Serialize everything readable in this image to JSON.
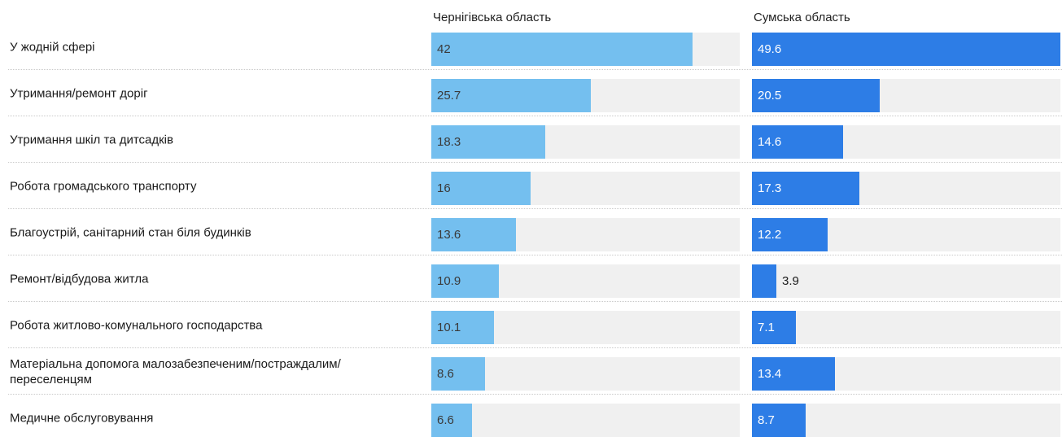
{
  "chart_data": {
    "type": "bar",
    "orientation": "horizontal",
    "categories": [
      "У жодній сфері",
      "Утримання/ремонт доріг",
      "Утримання шкіл та дитсадків",
      "Робота громадського транспорту",
      "Благоустрій, санітарний стан біля будинків",
      "Ремонт/відбудова житла",
      "Робота житлово-комунального господарства",
      "Матеріальна допомога малозабезпеченим/постраждалим/ переселенцям",
      "Медичне обслуговування"
    ],
    "series": [
      {
        "name": "Чернігівська область",
        "color": "#74bfef",
        "values": [
          42,
          25.7,
          18.3,
          16,
          13.6,
          10.9,
          10.1,
          8.6,
          6.6
        ]
      },
      {
        "name": "Сумська область",
        "color": "#2d7de6",
        "values": [
          49.6,
          20.5,
          14.6,
          17.3,
          12.2,
          3.9,
          7.1,
          13.4,
          8.7
        ]
      }
    ],
    "xlim": [
      0,
      49.6
    ],
    "track_color": "#f0f0f0",
    "grid": false,
    "legend": "column headers"
  }
}
